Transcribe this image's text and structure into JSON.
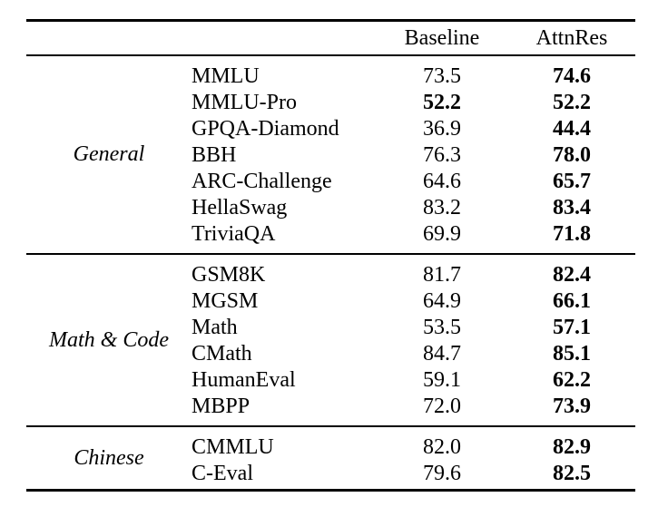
{
  "table": {
    "header": {
      "baseline": "Baseline",
      "attnres": "AttnRes"
    },
    "groups": [
      {
        "label": "General",
        "rows": [
          {
            "benchmark": "MMLU",
            "baseline": "73.5",
            "attnres": "74.6",
            "baseline_bold": false,
            "attnres_bold": true
          },
          {
            "benchmark": "MMLU-Pro",
            "baseline": "52.2",
            "attnres": "52.2",
            "baseline_bold": true,
            "attnres_bold": true
          },
          {
            "benchmark": "GPQA-Diamond",
            "baseline": "36.9",
            "attnres": "44.4",
            "baseline_bold": false,
            "attnres_bold": true
          },
          {
            "benchmark": "BBH",
            "baseline": "76.3",
            "attnres": "78.0",
            "baseline_bold": false,
            "attnres_bold": true
          },
          {
            "benchmark": "ARC-Challenge",
            "baseline": "64.6",
            "attnres": "65.7",
            "baseline_bold": false,
            "attnres_bold": true
          },
          {
            "benchmark": "HellaSwag",
            "baseline": "83.2",
            "attnres": "83.4",
            "baseline_bold": false,
            "attnres_bold": true
          },
          {
            "benchmark": "TriviaQA",
            "baseline": "69.9",
            "attnres": "71.8",
            "baseline_bold": false,
            "attnres_bold": true
          }
        ]
      },
      {
        "label": "Math & Code",
        "rows": [
          {
            "benchmark": "GSM8K",
            "baseline": "81.7",
            "attnres": "82.4",
            "baseline_bold": false,
            "attnres_bold": true
          },
          {
            "benchmark": "MGSM",
            "baseline": "64.9",
            "attnres": "66.1",
            "baseline_bold": false,
            "attnres_bold": true
          },
          {
            "benchmark": "Math",
            "baseline": "53.5",
            "attnres": "57.1",
            "baseline_bold": false,
            "attnres_bold": true
          },
          {
            "benchmark": "CMath",
            "baseline": "84.7",
            "attnres": "85.1",
            "baseline_bold": false,
            "attnres_bold": true
          },
          {
            "benchmark": "HumanEval",
            "baseline": "59.1",
            "attnres": "62.2",
            "baseline_bold": false,
            "attnres_bold": true
          },
          {
            "benchmark": "MBPP",
            "baseline": "72.0",
            "attnres": "73.9",
            "baseline_bold": false,
            "attnres_bold": true
          }
        ]
      },
      {
        "label": "Chinese",
        "rows": [
          {
            "benchmark": "CMMLU",
            "baseline": "82.0",
            "attnres": "82.9",
            "baseline_bold": false,
            "attnres_bold": true
          },
          {
            "benchmark": "C-Eval",
            "baseline": "79.6",
            "attnres": "82.5",
            "baseline_bold": false,
            "attnres_bold": true
          }
        ]
      }
    ]
  }
}
